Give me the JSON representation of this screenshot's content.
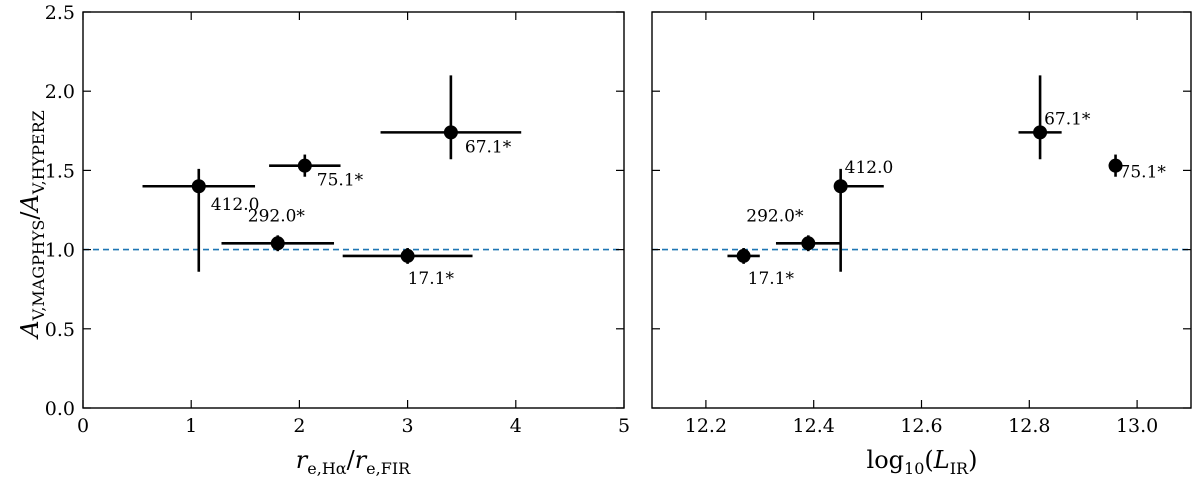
{
  "colors": {
    "markers": "#000000",
    "reference_line": "#1f77b4"
  },
  "ylabel": {
    "main": "A",
    "sub1": "V,MAGPHYS",
    "sep": "/",
    "main2": "A",
    "sub2": "V,HYPERZ"
  },
  "chart_data": [
    {
      "type": "scatter",
      "xlabel": {
        "r1": "r",
        "sub1": "e,Hα",
        "sep": "/",
        "r2": "r",
        "sub2": "e,FIR"
      },
      "xlim": [
        0,
        5
      ],
      "ylim": [
        0,
        2.5
      ],
      "xticks": [
        0,
        1,
        2,
        3,
        4,
        5
      ],
      "yticks": [
        0.0,
        0.5,
        1.0,
        1.5,
        2.0,
        2.5
      ],
      "xtick_labels": [
        "0",
        "1",
        "2",
        "3",
        "4",
        "5"
      ],
      "ytick_labels": [
        "0.0",
        "0.5",
        "1.0",
        "1.5",
        "2.0",
        "2.5"
      ],
      "reference_line_y": 1.0,
      "points": [
        {
          "label": "412.0",
          "x": 1.07,
          "y": 1.4,
          "xerr": [
            0.52,
            0.52
          ],
          "yerr": [
            0.54,
            0.11
          ]
        },
        {
          "label": "75.1*",
          "x": 2.05,
          "y": 1.53,
          "xerr": [
            0.33,
            0.33
          ],
          "yerr": [
            0.07,
            0.07
          ]
        },
        {
          "label": "292.0*",
          "x": 1.8,
          "y": 1.04,
          "xerr": [
            0.52,
            0.52
          ],
          "yerr": [
            0.05,
            0.05
          ]
        },
        {
          "label": "17.1*",
          "x": 3.0,
          "y": 0.96,
          "xerr": [
            0.6,
            0.6
          ],
          "yerr": [
            0.05,
            0.05
          ]
        },
        {
          "label": "67.1*",
          "x": 3.4,
          "y": 1.74,
          "xerr": [
            0.65,
            0.65
          ],
          "yerr": [
            0.17,
            0.36
          ]
        }
      ]
    },
    {
      "type": "scatter",
      "xlabel": {
        "pre": "log",
        "sub": "10",
        "open": "(",
        "main": "L",
        "sub2": "IR",
        "close": ")"
      },
      "xlim": [
        12.1,
        13.1
      ],
      "ylim": [
        0,
        2.5
      ],
      "xticks": [
        12.2,
        12.4,
        12.6,
        12.8,
        13.0
      ],
      "yticks": [
        0.0,
        0.5,
        1.0,
        1.5,
        2.0,
        2.5
      ],
      "xtick_labels": [
        "12.2",
        "12.4",
        "12.6",
        "12.8",
        "13.0"
      ],
      "reference_line_y": 1.0,
      "points": [
        {
          "label": "17.1*",
          "x": 12.27,
          "y": 0.96,
          "xerr": [
            0.03,
            0.03
          ],
          "yerr": [
            0.05,
            0.05
          ]
        },
        {
          "label": "292.0*",
          "x": 12.39,
          "y": 1.04,
          "xerr": [
            0.06,
            0.06
          ],
          "yerr": [
            0.05,
            0.05
          ]
        },
        {
          "label": "412.0",
          "x": 12.45,
          "y": 1.4,
          "xerr": [
            0.0,
            0.08
          ],
          "yerr": [
            0.54,
            0.11
          ]
        },
        {
          "label": "67.1*",
          "x": 12.82,
          "y": 1.74,
          "xerr": [
            0.04,
            0.04
          ],
          "yerr": [
            0.17,
            0.36
          ]
        },
        {
          "label": "75.1*",
          "x": 12.96,
          "y": 1.53,
          "xerr": [
            0.0,
            0.0
          ],
          "yerr": [
            0.07,
            0.07
          ]
        }
      ]
    }
  ]
}
